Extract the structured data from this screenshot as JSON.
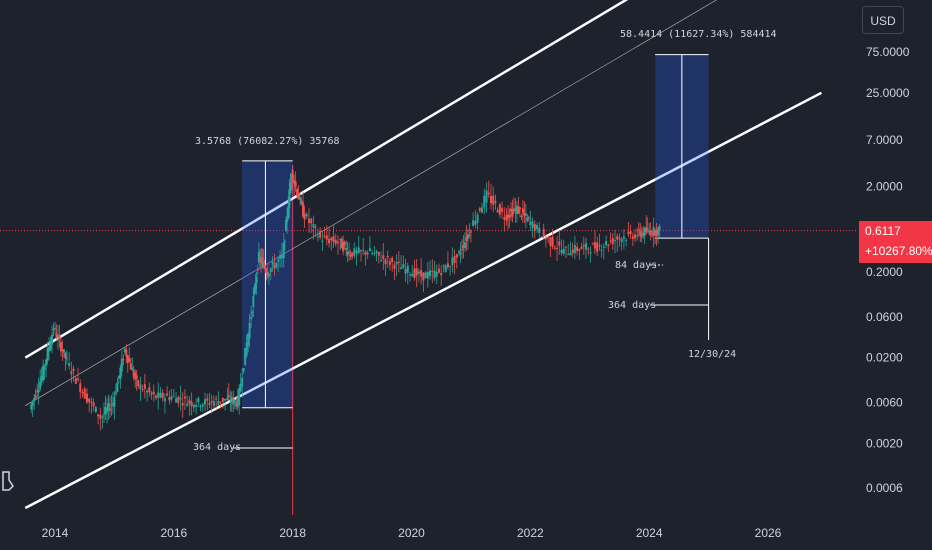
{
  "unit": "USD",
  "price_tag": {
    "price": "0.6117",
    "change": "+10267.80%"
  },
  "colors": {
    "background": "#1e222d",
    "up": "#26a69a",
    "down": "#ef5350",
    "channel": "#ffffff",
    "box": "#2962ff",
    "price_line": "#f23645"
  },
  "annotations": {
    "box1_label": "3.5768 (76082.27%) 35768",
    "box2_label": "58.4414 (11627.34%) 584414",
    "days1": "364 days",
    "days2": "84 days",
    "days3": "364 days",
    "date": "12/30/24"
  },
  "chart_data": {
    "type": "line",
    "y_scale": "log",
    "y_ticks": [
      "75.0000",
      "25.0000",
      "7.0000",
      "2.0000",
      "0.2000",
      "0.0600",
      "0.0200",
      "0.0060",
      "0.0020",
      "0.0006"
    ],
    "x_ticks": [
      "2014",
      "2016",
      "2018",
      "2020",
      "2022",
      "2024",
      "2026"
    ],
    "series": [
      {
        "values": [
          {
            "x": 2013.6,
            "y": 0.005
          },
          {
            "x": 2013.8,
            "y": 0.012
          },
          {
            "x": 2014.0,
            "y": 0.045
          },
          {
            "x": 2014.2,
            "y": 0.02
          },
          {
            "x": 2014.5,
            "y": 0.008
          },
          {
            "x": 2014.8,
            "y": 0.004
          },
          {
            "x": 2015.0,
            "y": 0.006
          },
          {
            "x": 2015.2,
            "y": 0.025
          },
          {
            "x": 2015.4,
            "y": 0.01
          },
          {
            "x": 2015.7,
            "y": 0.007
          },
          {
            "x": 2016.0,
            "y": 0.007
          },
          {
            "x": 2016.3,
            "y": 0.006
          },
          {
            "x": 2016.6,
            "y": 0.006
          },
          {
            "x": 2016.9,
            "y": 0.0065
          },
          {
            "x": 2017.1,
            "y": 0.006
          },
          {
            "x": 2017.3,
            "y": 0.05
          },
          {
            "x": 2017.45,
            "y": 0.3
          },
          {
            "x": 2017.6,
            "y": 0.2
          },
          {
            "x": 2017.85,
            "y": 0.3
          },
          {
            "x": 2018.0,
            "y": 3.0
          },
          {
            "x": 2018.2,
            "y": 1.0
          },
          {
            "x": 2018.5,
            "y": 0.5
          },
          {
            "x": 2018.8,
            "y": 0.45
          },
          {
            "x": 2019.0,
            "y": 0.33
          },
          {
            "x": 2019.3,
            "y": 0.35
          },
          {
            "x": 2019.6,
            "y": 0.28
          },
          {
            "x": 2019.9,
            "y": 0.22
          },
          {
            "x": 2020.2,
            "y": 0.18
          },
          {
            "x": 2020.5,
            "y": 0.2
          },
          {
            "x": 2020.8,
            "y": 0.3
          },
          {
            "x": 2021.0,
            "y": 0.6
          },
          {
            "x": 2021.3,
            "y": 1.6
          },
          {
            "x": 2021.6,
            "y": 0.9
          },
          {
            "x": 2021.8,
            "y": 1.1
          },
          {
            "x": 2022.0,
            "y": 0.8
          },
          {
            "x": 2022.3,
            "y": 0.5
          },
          {
            "x": 2022.6,
            "y": 0.35
          },
          {
            "x": 2022.9,
            "y": 0.38
          },
          {
            "x": 2023.2,
            "y": 0.4
          },
          {
            "x": 2023.5,
            "y": 0.5
          },
          {
            "x": 2023.8,
            "y": 0.55
          },
          {
            "x": 2024.0,
            "y": 0.6
          },
          {
            "x": 2024.2,
            "y": 0.6117
          }
        ]
      }
    ],
    "channel": {
      "upper": [
        {
          "x": 2013.5,
          "y": 0.02
        },
        {
          "x": 2026.9,
          "y": 7000
        }
      ],
      "middle": [
        {
          "x": 2013.5,
          "y": 0.0055
        },
        {
          "x": 2026.9,
          "y": 1600
        }
      ],
      "lower": [
        {
          "x": 2013.5,
          "y": 0.00035
        },
        {
          "x": 2026.9,
          "y": 25
        }
      ]
    },
    "boxes": [
      {
        "x0": 2017.15,
        "x1": 2018.0,
        "y0": 0.0052,
        "y1": 4.0
      },
      {
        "x0": 2024.1,
        "x1": 2025.0,
        "y0": 0.5,
        "y1": 70
      }
    ],
    "price_line": 0.6117,
    "vertical_marker": 2018.0,
    "projection_date": "12/30/24",
    "legend": "none",
    "grid": false
  }
}
